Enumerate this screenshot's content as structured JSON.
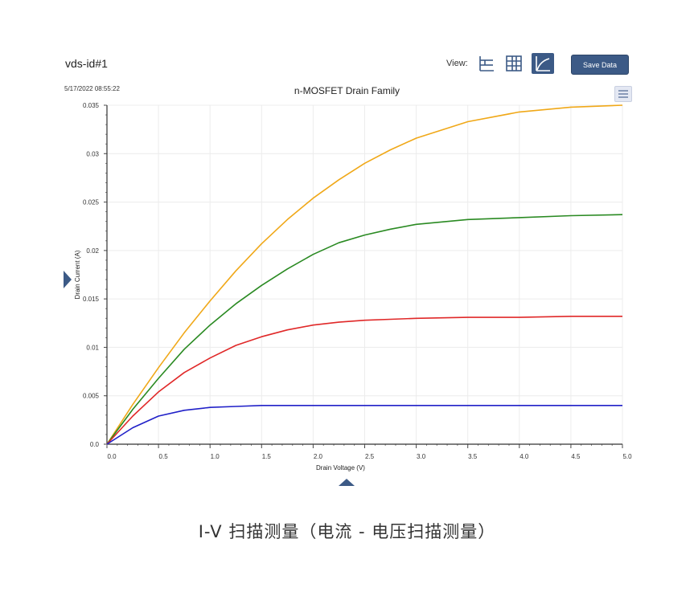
{
  "header": {
    "title": "vds-id#1",
    "timestamp": "5/17/2022 08:55:22",
    "view_label": "View:",
    "save_label": "Save Data"
  },
  "caption": "I-V 扫描测量（电流 - 电压扫描测量）",
  "chart_data": {
    "type": "line",
    "title": "n-MOSFET Drain Family",
    "xlabel": "Drain Voltage (V)",
    "ylabel": "Drain Current (A)",
    "xlim": [
      0,
      5.0
    ],
    "ylim": [
      0,
      0.035
    ],
    "x_ticks": [
      "0.0",
      "0.5",
      "1.0",
      "1.5",
      "2.0",
      "2.5",
      "3.0",
      "3.5",
      "4.0",
      "4.5",
      "5.0"
    ],
    "y_ticks": [
      "0.0",
      "0.005",
      "0.01",
      "0.015",
      "0.02",
      "0.025",
      "0.03",
      "0.035"
    ],
    "grid": true,
    "x": [
      0,
      0.25,
      0.5,
      0.75,
      1.0,
      1.25,
      1.5,
      1.75,
      2.0,
      2.25,
      2.5,
      2.75,
      3.0,
      3.5,
      4.0,
      4.5,
      5.0
    ],
    "series": [
      {
        "color": "#f0a818",
        "values": [
          0,
          0.0041,
          0.0079,
          0.0115,
          0.0148,
          0.0179,
          0.0207,
          0.0232,
          0.0254,
          0.0273,
          0.029,
          0.0304,
          0.0316,
          0.0333,
          0.0343,
          0.0348,
          0.035
        ]
      },
      {
        "color": "#2a8a22",
        "values": [
          0,
          0.0036,
          0.0068,
          0.0098,
          0.0123,
          0.0145,
          0.0164,
          0.0181,
          0.0196,
          0.0208,
          0.0216,
          0.0222,
          0.0227,
          0.0232,
          0.0234,
          0.0236,
          0.0237
        ]
      },
      {
        "color": "#e02828",
        "values": [
          0,
          0.0029,
          0.0054,
          0.0074,
          0.0089,
          0.0102,
          0.0111,
          0.0118,
          0.0123,
          0.0126,
          0.0128,
          0.0129,
          0.013,
          0.0131,
          0.0131,
          0.0132,
          0.0132
        ]
      },
      {
        "color": "#2020c8",
        "values": [
          0,
          0.0017,
          0.0029,
          0.0035,
          0.0038,
          0.0039,
          0.004,
          0.004,
          0.004,
          0.004,
          0.004,
          0.004,
          0.004,
          0.004,
          0.004,
          0.004,
          0.004
        ]
      }
    ]
  }
}
